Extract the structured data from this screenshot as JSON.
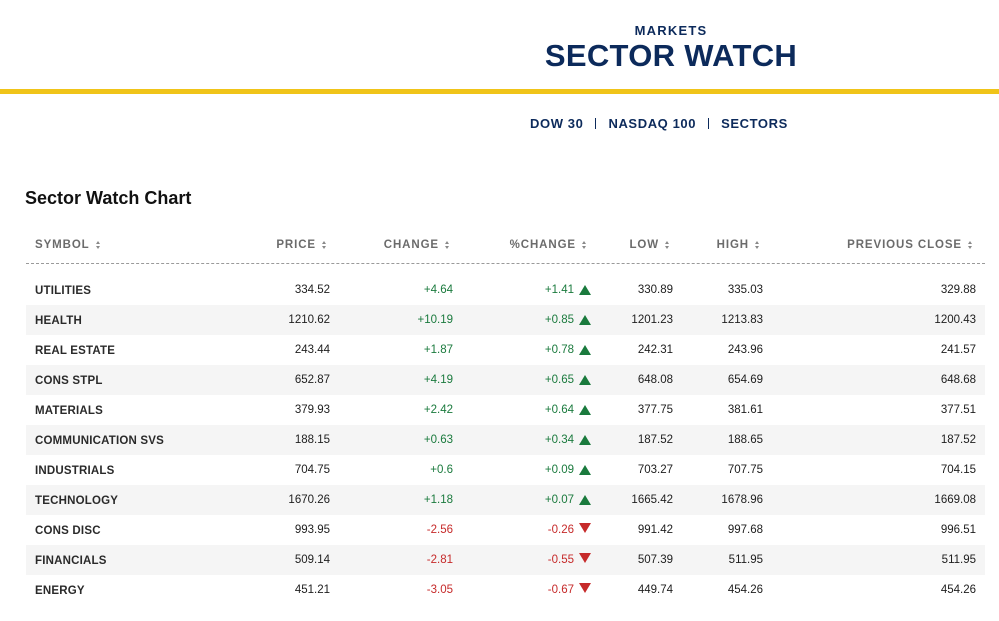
{
  "header": {
    "kicker": "MARKETS",
    "title": "SECTOR WATCH",
    "accent_color": "#f0c419",
    "brand_color": "#0c2a5b"
  },
  "nav": {
    "items": [
      {
        "label": "DOW 30"
      },
      {
        "label": "NASDAQ 100"
      },
      {
        "label": "SECTORS"
      }
    ]
  },
  "table": {
    "title": "Sector Watch Chart",
    "columns": {
      "symbol": "SYMBOL",
      "price": "PRICE",
      "change": "CHANGE",
      "pct_change": "%CHANGE",
      "low": "LOW",
      "high": "HIGH",
      "prev_close": "PREVIOUS CLOSE"
    },
    "rows": [
      {
        "symbol": "UTILITIES",
        "price": "334.52",
        "change": "+4.64",
        "pct": "+1.41",
        "dir": "up",
        "low": "330.89",
        "high": "335.03",
        "prev": "329.88"
      },
      {
        "symbol": "HEALTH",
        "price": "1210.62",
        "change": "+10.19",
        "pct": "+0.85",
        "dir": "up",
        "low": "1201.23",
        "high": "1213.83",
        "prev": "1200.43"
      },
      {
        "symbol": "REAL ESTATE",
        "price": "243.44",
        "change": "+1.87",
        "pct": "+0.78",
        "dir": "up",
        "low": "242.31",
        "high": "243.96",
        "prev": "241.57"
      },
      {
        "symbol": "CONS STPL",
        "price": "652.87",
        "change": "+4.19",
        "pct": "+0.65",
        "dir": "up",
        "low": "648.08",
        "high": "654.69",
        "prev": "648.68"
      },
      {
        "symbol": "MATERIALS",
        "price": "379.93",
        "change": "+2.42",
        "pct": "+0.64",
        "dir": "up",
        "low": "377.75",
        "high": "381.61",
        "prev": "377.51"
      },
      {
        "symbol": "COMMUNICATION SVS",
        "price": "188.15",
        "change": "+0.63",
        "pct": "+0.34",
        "dir": "up",
        "low": "187.52",
        "high": "188.65",
        "prev": "187.52"
      },
      {
        "symbol": "INDUSTRIALS",
        "price": "704.75",
        "change": "+0.6",
        "pct": "+0.09",
        "dir": "up",
        "low": "703.27",
        "high": "707.75",
        "prev": "704.15"
      },
      {
        "symbol": "TECHNOLOGY",
        "price": "1670.26",
        "change": "+1.18",
        "pct": "+0.07",
        "dir": "up",
        "low": "1665.42",
        "high": "1678.96",
        "prev": "1669.08"
      },
      {
        "symbol": "CONS DISC",
        "price": "993.95",
        "change": "-2.56",
        "pct": "-0.26",
        "dir": "down",
        "low": "991.42",
        "high": "997.68",
        "prev": "996.51"
      },
      {
        "symbol": "FINANCIALS",
        "price": "509.14",
        "change": "-2.81",
        "pct": "-0.55",
        "dir": "down",
        "low": "507.39",
        "high": "511.95",
        "prev": "511.95"
      },
      {
        "symbol": "ENERGY",
        "price": "451.21",
        "change": "-3.05",
        "pct": "-0.67",
        "dir": "down",
        "low": "449.74",
        "high": "454.26",
        "prev": "454.26"
      }
    ]
  }
}
